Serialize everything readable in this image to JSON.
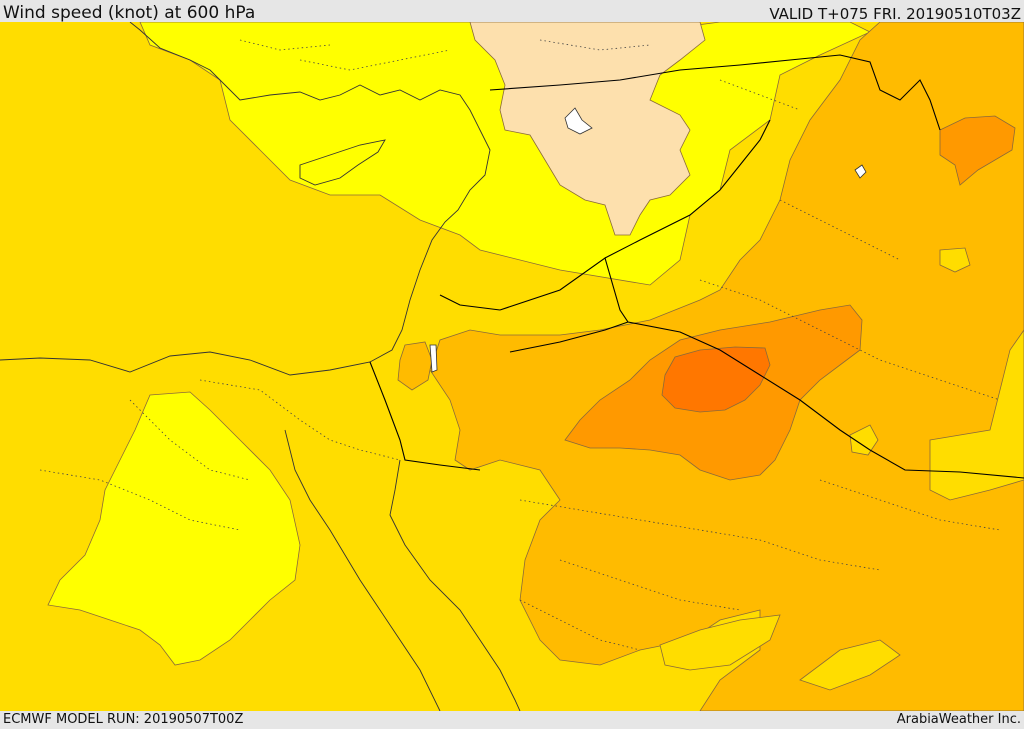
{
  "header": {
    "title": "Wind speed (knot) at 600 hPa",
    "valid": "VALID T+075 FRI. 20190510T03Z"
  },
  "footer": {
    "model_run": "ECMWF MODEL RUN: 20190507T00Z",
    "credit": "ArabiaWeather Inc."
  },
  "palette": {
    "band_1": "#fde0ad",
    "band_2": "#ffff00",
    "band_3": "#ffdd00",
    "band_4": "#ffbb00",
    "band_5": "#ff9900",
    "band_6": "#ff7700",
    "contour_line": "#8a6a3a",
    "border_line": "#000000",
    "coast_line": "#333333"
  }
}
